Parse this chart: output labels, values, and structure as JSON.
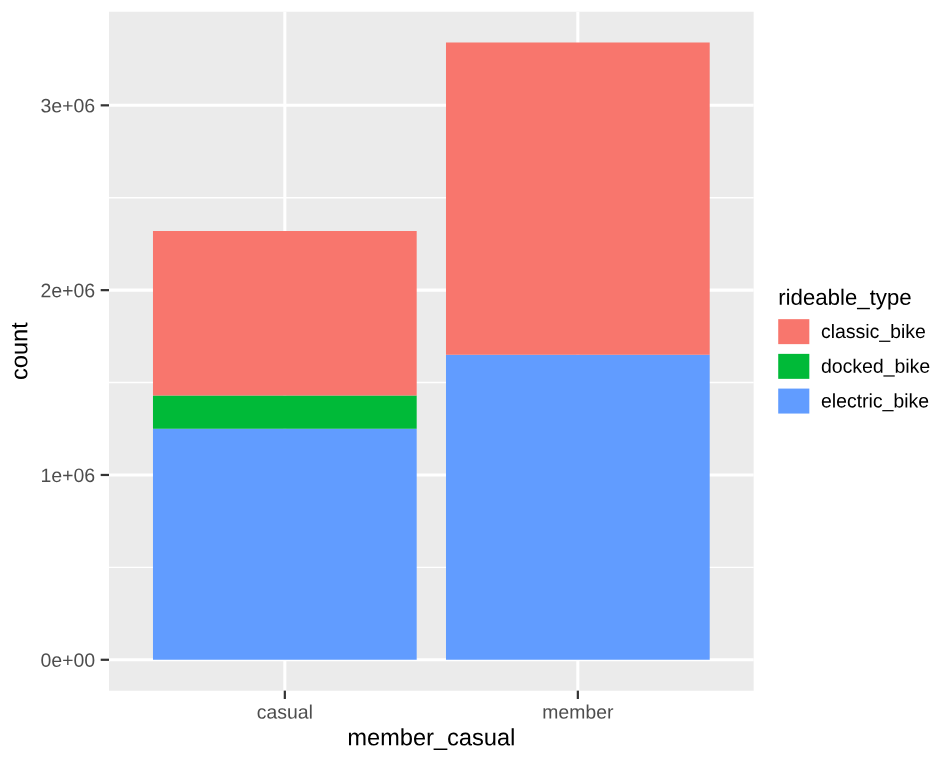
{
  "chart_data": {
    "type": "bar",
    "stacked": true,
    "xlabel": "member_casual",
    "ylabel": "count",
    "legend_title": "rideable_type",
    "legend": "right",
    "grid": true,
    "categories": [
      "casual",
      "member"
    ],
    "ylim": [
      -167000,
      3507000
    ],
    "yticks": [
      {
        "value": 0,
        "label": "0e+00"
      },
      {
        "value": 1000000,
        "label": "1e+06"
      },
      {
        "value": 2000000,
        "label": "2e+06"
      },
      {
        "value": 3000000,
        "label": "3e+06"
      }
    ],
    "series": [
      {
        "name": "electric_bike",
        "color": "#619cff",
        "values": [
          1250000,
          1650000
        ]
      },
      {
        "name": "docked_bike",
        "color": "#00ba38",
        "values": [
          180000,
          null
        ]
      },
      {
        "name": "classic_bike",
        "color": "#f8766d",
        "values": [
          890000,
          1690000
        ]
      }
    ]
  }
}
